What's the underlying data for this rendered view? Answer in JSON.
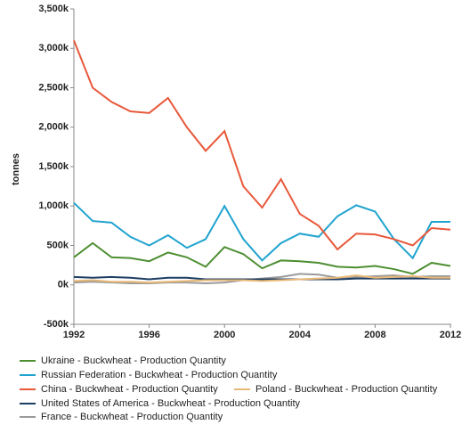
{
  "chart_data": {
    "type": "line",
    "y_label": "tonnes",
    "x": [
      1992,
      1993,
      1994,
      1995,
      1996,
      1997,
      1998,
      1999,
      2000,
      2001,
      2002,
      2003,
      2004,
      2005,
      2006,
      2007,
      2008,
      2009,
      2010,
      2011,
      2012
    ],
    "xlim": [
      1992,
      2012
    ],
    "xticks": [
      1992,
      1996,
      2000,
      2004,
      2008,
      2012
    ],
    "ylim": [
      -500000,
      3500000
    ],
    "yticks": [
      {
        "value": -500000,
        "label": "-500k"
      },
      {
        "value": 0,
        "label": "0k"
      },
      {
        "value": 500000,
        "label": "500k"
      },
      {
        "value": 1000000,
        "label": "1,000k"
      },
      {
        "value": 1500000,
        "label": "1,500k"
      },
      {
        "value": 2000000,
        "label": "2,000k"
      },
      {
        "value": 2500000,
        "label": "2,500k"
      },
      {
        "value": 3000000,
        "label": "3,000k"
      },
      {
        "value": 3500000,
        "label": "3,500k"
      }
    ],
    "grid": false,
    "series": [
      {
        "name": "Ukraine - Buckwheat - Production Quantity",
        "color": "#4e8f32",
        "values": [
          350000,
          530000,
          350000,
          340000,
          300000,
          410000,
          350000,
          230000,
          480000,
          390000,
          210000,
          310000,
          300000,
          280000,
          230000,
          220000,
          240000,
          200000,
          140000,
          280000,
          240000
        ]
      },
      {
        "name": "Russian Federation - Buckwheat - Production Quantity",
        "color": "#1fa3cf",
        "values": [
          1040000,
          810000,
          790000,
          610000,
          500000,
          630000,
          470000,
          580000,
          1000000,
          580000,
          310000,
          530000,
          650000,
          610000,
          870000,
          1010000,
          930000,
          580000,
          340000,
          800000,
          800000
        ]
      },
      {
        "name": "China - Buckwheat - Production Quantity",
        "color": "#e8583a",
        "values": [
          3100000,
          2500000,
          2320000,
          2200000,
          2180000,
          2370000,
          2000000,
          1700000,
          1950000,
          1250000,
          980000,
          1340000,
          900000,
          750000,
          450000,
          650000,
          640000,
          580000,
          500000,
          720000,
          700000
        ]
      },
      {
        "name": "Poland - Buckwheat - Production Quantity",
        "color": "#e8b878",
        "values": [
          50000,
          60000,
          40000,
          40000,
          30000,
          40000,
          50000,
          60000,
          60000,
          60000,
          50000,
          60000,
          70000,
          80000,
          90000,
          120000,
          90000,
          100000,
          110000,
          90000,
          90000
        ]
      },
      {
        "name": "United States of America - Buckwheat - Production Quantity",
        "color": "#1d3d63",
        "values": [
          100000,
          90000,
          100000,
          90000,
          70000,
          90000,
          90000,
          70000,
          70000,
          70000,
          70000,
          70000,
          70000,
          70000,
          70000,
          80000,
          80000,
          80000,
          80000,
          80000,
          80000
        ]
      },
      {
        "name": "France - Buckwheat - Production Quantity",
        "color": "#9a9a9a",
        "values": [
          30000,
          40000,
          30000,
          20000,
          20000,
          30000,
          30000,
          20000,
          30000,
          60000,
          80000,
          100000,
          140000,
          130000,
          90000,
          100000,
          110000,
          120000,
          100000,
          110000,
          110000
        ]
      }
    ]
  }
}
